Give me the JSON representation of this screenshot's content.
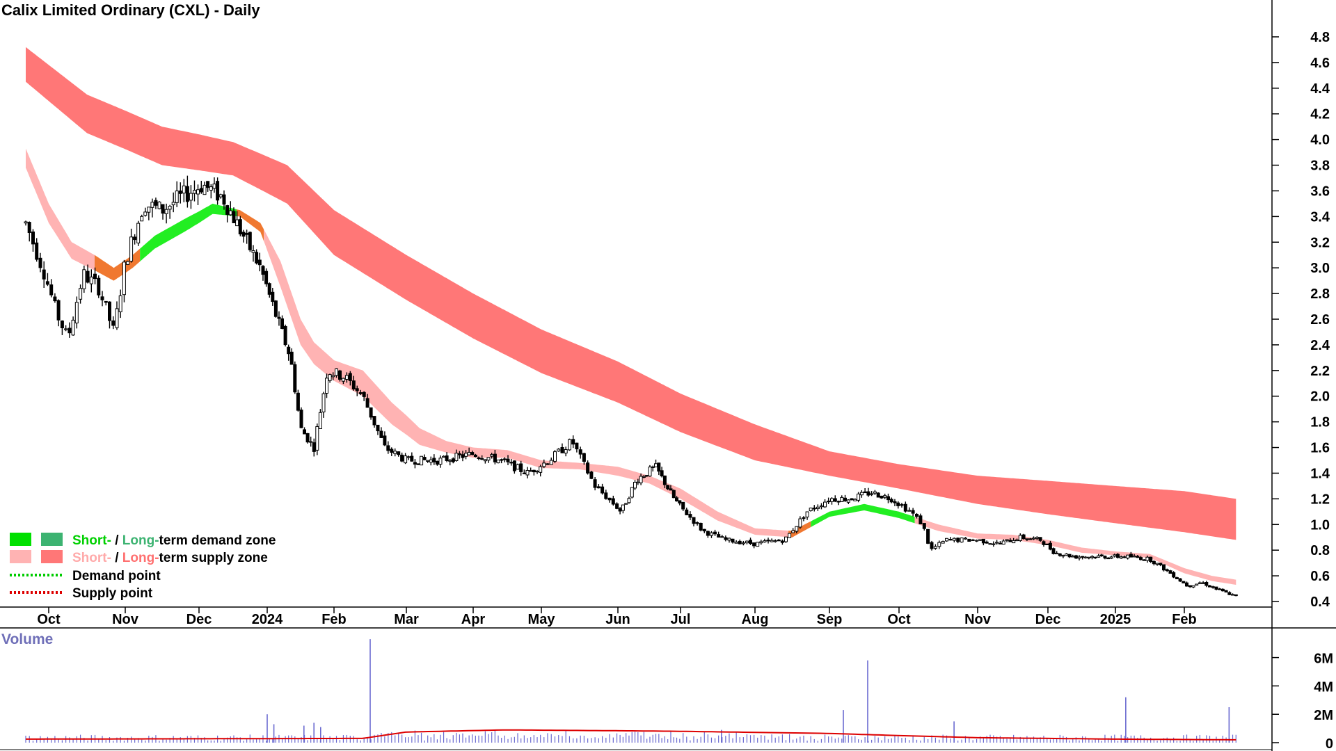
{
  "chart_data": {
    "type": "candlestick",
    "title": "Calix Limited Ordinary (CXL) - Daily",
    "price_axis": {
      "range": [
        0.3,
        4.9
      ],
      "ticks": [
        "4.8",
        "4.6",
        "4.4",
        "4.2",
        "4.0",
        "3.8",
        "3.6",
        "3.4",
        "3.2",
        "3.0",
        "2.8",
        "2.6",
        "2.4",
        "2.2",
        "2.0",
        "1.8",
        "1.6",
        "1.4",
        "1.2",
        "1.0",
        "0.8",
        "0.6",
        "0.4"
      ]
    },
    "x_axis": {
      "ticks": [
        "Oct",
        "Nov",
        "Dec",
        "2024",
        "Feb",
        "Mar",
        "Apr",
        "May",
        "Jun",
        "Jul",
        "Aug",
        "Sep",
        "Oct",
        "Nov",
        "Dec",
        "2025",
        "Feb"
      ],
      "tick_month_index": [
        1.0,
        2.0,
        3.0,
        4.0,
        5.0,
        6.0,
        7.0,
        8.0,
        9.0,
        10.0,
        11.0,
        12.0,
        13.0,
        14.0,
        15.0,
        16.0,
        17.0
      ],
      "month_range": [
        0.7,
        17.85
      ]
    },
    "price_keypoints": [
      {
        "m": 0.7,
        "p": 3.35
      },
      {
        "m": 0.95,
        "p": 2.95
      },
      {
        "m": 1.1,
        "p": 2.65
      },
      {
        "m": 1.25,
        "p": 2.45
      },
      {
        "m": 1.45,
        "p": 2.95
      },
      {
        "m": 1.65,
        "p": 2.85
      },
      {
        "m": 1.85,
        "p": 2.5
      },
      {
        "m": 2.0,
        "p": 3.05
      },
      {
        "m": 2.25,
        "p": 3.5
      },
      {
        "m": 2.5,
        "p": 3.45
      },
      {
        "m": 2.75,
        "p": 3.55
      },
      {
        "m": 3.05,
        "p": 3.65
      },
      {
        "m": 3.35,
        "p": 3.55
      },
      {
        "m": 3.6,
        "p": 3.3
      },
      {
        "m": 3.9,
        "p": 3.0
      },
      {
        "m": 4.15,
        "p": 2.6
      },
      {
        "m": 4.35,
        "p": 2.3
      },
      {
        "m": 4.5,
        "p": 1.75
      },
      {
        "m": 4.7,
        "p": 1.6
      },
      {
        "m": 4.9,
        "p": 2.2
      },
      {
        "m": 5.15,
        "p": 2.15
      },
      {
        "m": 5.4,
        "p": 2.0
      },
      {
        "m": 5.7,
        "p": 1.6
      },
      {
        "m": 6.0,
        "p": 1.5
      },
      {
        "m": 6.5,
        "p": 1.5
      },
      {
        "m": 7.0,
        "p": 1.55
      },
      {
        "m": 7.4,
        "p": 1.5
      },
      {
        "m": 7.8,
        "p": 1.4
      },
      {
        "m": 8.1,
        "p": 1.5
      },
      {
        "m": 8.4,
        "p": 1.65
      },
      {
        "m": 8.7,
        "p": 1.3
      },
      {
        "m": 9.05,
        "p": 1.1
      },
      {
        "m": 9.3,
        "p": 1.35
      },
      {
        "m": 9.6,
        "p": 1.45
      },
      {
        "m": 9.9,
        "p": 1.2
      },
      {
        "m": 10.3,
        "p": 0.95
      },
      {
        "m": 10.6,
        "p": 0.88
      },
      {
        "m": 11.0,
        "p": 0.85
      },
      {
        "m": 11.4,
        "p": 0.88
      },
      {
        "m": 11.7,
        "p": 1.1
      },
      {
        "m": 12.0,
        "p": 1.2
      },
      {
        "m": 12.3,
        "p": 1.2
      },
      {
        "m": 12.6,
        "p": 1.25
      },
      {
        "m": 12.9,
        "p": 1.2
      },
      {
        "m": 13.15,
        "p": 1.1
      },
      {
        "m": 13.3,
        "p": 1.0
      },
      {
        "m": 13.4,
        "p": 0.8
      },
      {
        "m": 13.6,
        "p": 0.88
      },
      {
        "m": 14.0,
        "p": 0.88
      },
      {
        "m": 14.3,
        "p": 0.85
      },
      {
        "m": 14.6,
        "p": 0.9
      },
      {
        "m": 14.9,
        "p": 0.88
      },
      {
        "m": 15.1,
        "p": 0.78
      },
      {
        "m": 15.4,
        "p": 0.75
      },
      {
        "m": 15.8,
        "p": 0.75
      },
      {
        "m": 16.2,
        "p": 0.75
      },
      {
        "m": 16.5,
        "p": 0.73
      },
      {
        "m": 16.8,
        "p": 0.62
      },
      {
        "m": 17.05,
        "p": 0.52
      },
      {
        "m": 17.25,
        "p": 0.55
      },
      {
        "m": 17.45,
        "p": 0.5
      },
      {
        "m": 17.75,
        "p": 0.44
      }
    ],
    "long_term_supply_zone": {
      "color": "#ff7777",
      "upper": [
        {
          "m": 0.7,
          "p": 4.72
        },
        {
          "m": 1.5,
          "p": 4.35
        },
        {
          "m": 2.5,
          "p": 4.1
        },
        {
          "m": 3.5,
          "p": 3.98
        },
        {
          "m": 4.3,
          "p": 3.8
        },
        {
          "m": 5.0,
          "p": 3.45
        },
        {
          "m": 6.0,
          "p": 3.1
        },
        {
          "m": 7.0,
          "p": 2.8
        },
        {
          "m": 8.0,
          "p": 2.52
        },
        {
          "m": 9.0,
          "p": 2.27
        },
        {
          "m": 10.0,
          "p": 2.02
        },
        {
          "m": 11.0,
          "p": 1.78
        },
        {
          "m": 12.0,
          "p": 1.57
        },
        {
          "m": 13.0,
          "p": 1.47
        },
        {
          "m": 14.0,
          "p": 1.38
        },
        {
          "m": 15.0,
          "p": 1.34
        },
        {
          "m": 16.0,
          "p": 1.3
        },
        {
          "m": 17.0,
          "p": 1.26
        },
        {
          "m": 17.75,
          "p": 1.2
        }
      ],
      "lower": [
        {
          "m": 0.7,
          "p": 4.45
        },
        {
          "m": 1.5,
          "p": 4.05
        },
        {
          "m": 2.5,
          "p": 3.8
        },
        {
          "m": 3.5,
          "p": 3.72
        },
        {
          "m": 4.3,
          "p": 3.5
        },
        {
          "m": 5.0,
          "p": 3.1
        },
        {
          "m": 6.0,
          "p": 2.75
        },
        {
          "m": 7.0,
          "p": 2.45
        },
        {
          "m": 8.0,
          "p": 2.18
        },
        {
          "m": 9.0,
          "p": 1.95
        },
        {
          "m": 10.0,
          "p": 1.72
        },
        {
          "m": 11.0,
          "p": 1.5
        },
        {
          "m": 12.0,
          "p": 1.38
        },
        {
          "m": 13.0,
          "p": 1.28
        },
        {
          "m": 14.0,
          "p": 1.16
        },
        {
          "m": 15.0,
          "p": 1.08
        },
        {
          "m": 16.0,
          "p": 1.01
        },
        {
          "m": 17.0,
          "p": 0.94
        },
        {
          "m": 17.75,
          "p": 0.88
        }
      ]
    },
    "short_term_zone": {
      "upper": [
        {
          "m": 0.7,
          "p": 3.93
        },
        {
          "m": 1.0,
          "p": 3.5
        },
        {
          "m": 1.3,
          "p": 3.2
        },
        {
          "m": 1.6,
          "p": 3.1
        },
        {
          "m": 1.85,
          "p": 3.0
        },
        {
          "m": 2.1,
          "p": 3.1
        },
        {
          "m": 2.4,
          "p": 3.25
        },
        {
          "m": 2.8,
          "p": 3.38
        },
        {
          "m": 3.2,
          "p": 3.5
        },
        {
          "m": 3.6,
          "p": 3.45
        },
        {
          "m": 3.9,
          "p": 3.35
        },
        {
          "m": 4.2,
          "p": 3.05
        },
        {
          "m": 4.5,
          "p": 2.6
        },
        {
          "m": 4.7,
          "p": 2.42
        },
        {
          "m": 5.0,
          "p": 2.28
        },
        {
          "m": 5.4,
          "p": 2.2
        },
        {
          "m": 5.8,
          "p": 1.95
        },
        {
          "m": 6.2,
          "p": 1.75
        },
        {
          "m": 6.6,
          "p": 1.65
        },
        {
          "m": 7.0,
          "p": 1.6
        },
        {
          "m": 7.5,
          "p": 1.58
        },
        {
          "m": 8.0,
          "p": 1.5
        },
        {
          "m": 8.5,
          "p": 1.48
        },
        {
          "m": 9.0,
          "p": 1.45
        },
        {
          "m": 9.5,
          "p": 1.38
        },
        {
          "m": 10.0,
          "p": 1.28
        },
        {
          "m": 10.5,
          "p": 1.1
        },
        {
          "m": 11.0,
          "p": 0.97
        },
        {
          "m": 11.5,
          "p": 0.95
        },
        {
          "m": 12.0,
          "p": 1.1
        },
        {
          "m": 12.5,
          "p": 1.16
        },
        {
          "m": 13.0,
          "p": 1.1
        },
        {
          "m": 13.5,
          "p": 1.0
        },
        {
          "m": 14.0,
          "p": 0.93
        },
        {
          "m": 14.5,
          "p": 0.92
        },
        {
          "m": 15.0,
          "p": 0.88
        },
        {
          "m": 15.5,
          "p": 0.82
        },
        {
          "m": 16.0,
          "p": 0.79
        },
        {
          "m": 16.5,
          "p": 0.77
        },
        {
          "m": 17.0,
          "p": 0.66
        },
        {
          "m": 17.4,
          "p": 0.6
        },
        {
          "m": 17.75,
          "p": 0.57
        }
      ],
      "lower": [
        {
          "m": 0.7,
          "p": 3.78
        },
        {
          "m": 1.0,
          "p": 3.35
        },
        {
          "m": 1.3,
          "p": 3.07
        },
        {
          "m": 1.6,
          "p": 2.98
        },
        {
          "m": 1.85,
          "p": 2.9
        },
        {
          "m": 2.1,
          "p": 3.0
        },
        {
          "m": 2.4,
          "p": 3.15
        },
        {
          "m": 2.8,
          "p": 3.28
        },
        {
          "m": 3.2,
          "p": 3.42
        },
        {
          "m": 3.6,
          "p": 3.4
        },
        {
          "m": 3.9,
          "p": 3.28
        },
        {
          "m": 4.2,
          "p": 2.85
        },
        {
          "m": 4.5,
          "p": 2.4
        },
        {
          "m": 4.7,
          "p": 2.25
        },
        {
          "m": 5.0,
          "p": 2.12
        },
        {
          "m": 5.4,
          "p": 2.0
        },
        {
          "m": 5.8,
          "p": 1.78
        },
        {
          "m": 6.2,
          "p": 1.62
        },
        {
          "m": 6.6,
          "p": 1.56
        },
        {
          "m": 7.0,
          "p": 1.52
        },
        {
          "m": 7.5,
          "p": 1.52
        },
        {
          "m": 8.0,
          "p": 1.44
        },
        {
          "m": 8.5,
          "p": 1.43
        },
        {
          "m": 9.0,
          "p": 1.38
        },
        {
          "m": 9.5,
          "p": 1.32
        },
        {
          "m": 10.0,
          "p": 1.2
        },
        {
          "m": 10.5,
          "p": 1.03
        },
        {
          "m": 11.0,
          "p": 0.92
        },
        {
          "m": 11.5,
          "p": 0.9
        },
        {
          "m": 12.0,
          "p": 1.06
        },
        {
          "m": 12.5,
          "p": 1.11
        },
        {
          "m": 13.0,
          "p": 1.05
        },
        {
          "m": 13.5,
          "p": 0.95
        },
        {
          "m": 14.0,
          "p": 0.89
        },
        {
          "m": 14.5,
          "p": 0.88
        },
        {
          "m": 15.0,
          "p": 0.84
        },
        {
          "m": 15.5,
          "p": 0.78
        },
        {
          "m": 16.0,
          "p": 0.76
        },
        {
          "m": 16.5,
          "p": 0.74
        },
        {
          "m": 17.0,
          "p": 0.62
        },
        {
          "m": 17.4,
          "p": 0.56
        },
        {
          "m": 17.75,
          "p": 0.53
        }
      ],
      "segments": [
        {
          "from": 0.7,
          "to": 1.6,
          "kind": "supply"
        },
        {
          "from": 1.6,
          "to": 2.2,
          "kind": "transition"
        },
        {
          "from": 2.2,
          "to": 3.55,
          "kind": "demand"
        },
        {
          "from": 3.55,
          "to": 3.95,
          "kind": "transition"
        },
        {
          "from": 3.95,
          "to": 11.7,
          "kind": "supply"
        },
        {
          "from": 11.45,
          "to": 11.75,
          "kind": "transition"
        },
        {
          "from": 11.75,
          "to": 13.2,
          "kind": "demand"
        },
        {
          "from": 13.2,
          "to": 17.75,
          "kind": "supply"
        }
      ],
      "colors": {
        "supply": "#ffb3b3",
        "demand": "#22ee22",
        "transition": "#f07830"
      }
    },
    "volume": {
      "label": "Volume",
      "ticks": [
        "6M",
        "4M",
        "2M",
        "0"
      ],
      "range": [
        0,
        7500000
      ],
      "spikes": [
        {
          "m": 4.0,
          "v": 2000000
        },
        {
          "m": 4.1,
          "v": 1300000
        },
        {
          "m": 4.55,
          "v": 1200000
        },
        {
          "m": 4.7,
          "v": 1400000
        },
        {
          "m": 4.8,
          "v": 1100000
        },
        {
          "m": 5.5,
          "v": 7300000
        },
        {
          "m": 12.2,
          "v": 2300000
        },
        {
          "m": 12.55,
          "v": 5800000
        },
        {
          "m": 16.15,
          "v": 3200000
        },
        {
          "m": 17.65,
          "v": 2500000
        },
        {
          "m": 10.55,
          "v": 900000
        },
        {
          "m": 13.7,
          "v": 1500000
        }
      ],
      "average_line": [
        {
          "m": 0.7,
          "v": 250000
        },
        {
          "m": 5.4,
          "v": 300000
        },
        {
          "m": 6.0,
          "v": 750000
        },
        {
          "m": 7.5,
          "v": 900000
        },
        {
          "m": 10.0,
          "v": 800000
        },
        {
          "m": 12.0,
          "v": 650000
        },
        {
          "m": 14.0,
          "v": 350000
        },
        {
          "m": 16.0,
          "v": 250000
        },
        {
          "m": 17.75,
          "v": 200000
        }
      ]
    },
    "legend": [
      {
        "prefix": "Short-",
        "sep": " / ",
        "mid": "Long-",
        "suffix": "term demand zone",
        "color_short": "#00e000",
        "color_long": "#3cb371"
      },
      {
        "prefix": "Short-",
        "sep": " / ",
        "mid": "Long-",
        "suffix": "term supply zone",
        "color_short": "#ffb3b3",
        "color_long": "#ff7777"
      },
      {
        "label": "Demand point",
        "color": "#00cc00"
      },
      {
        "label": "Supply point",
        "color": "#dd0000"
      }
    ]
  }
}
